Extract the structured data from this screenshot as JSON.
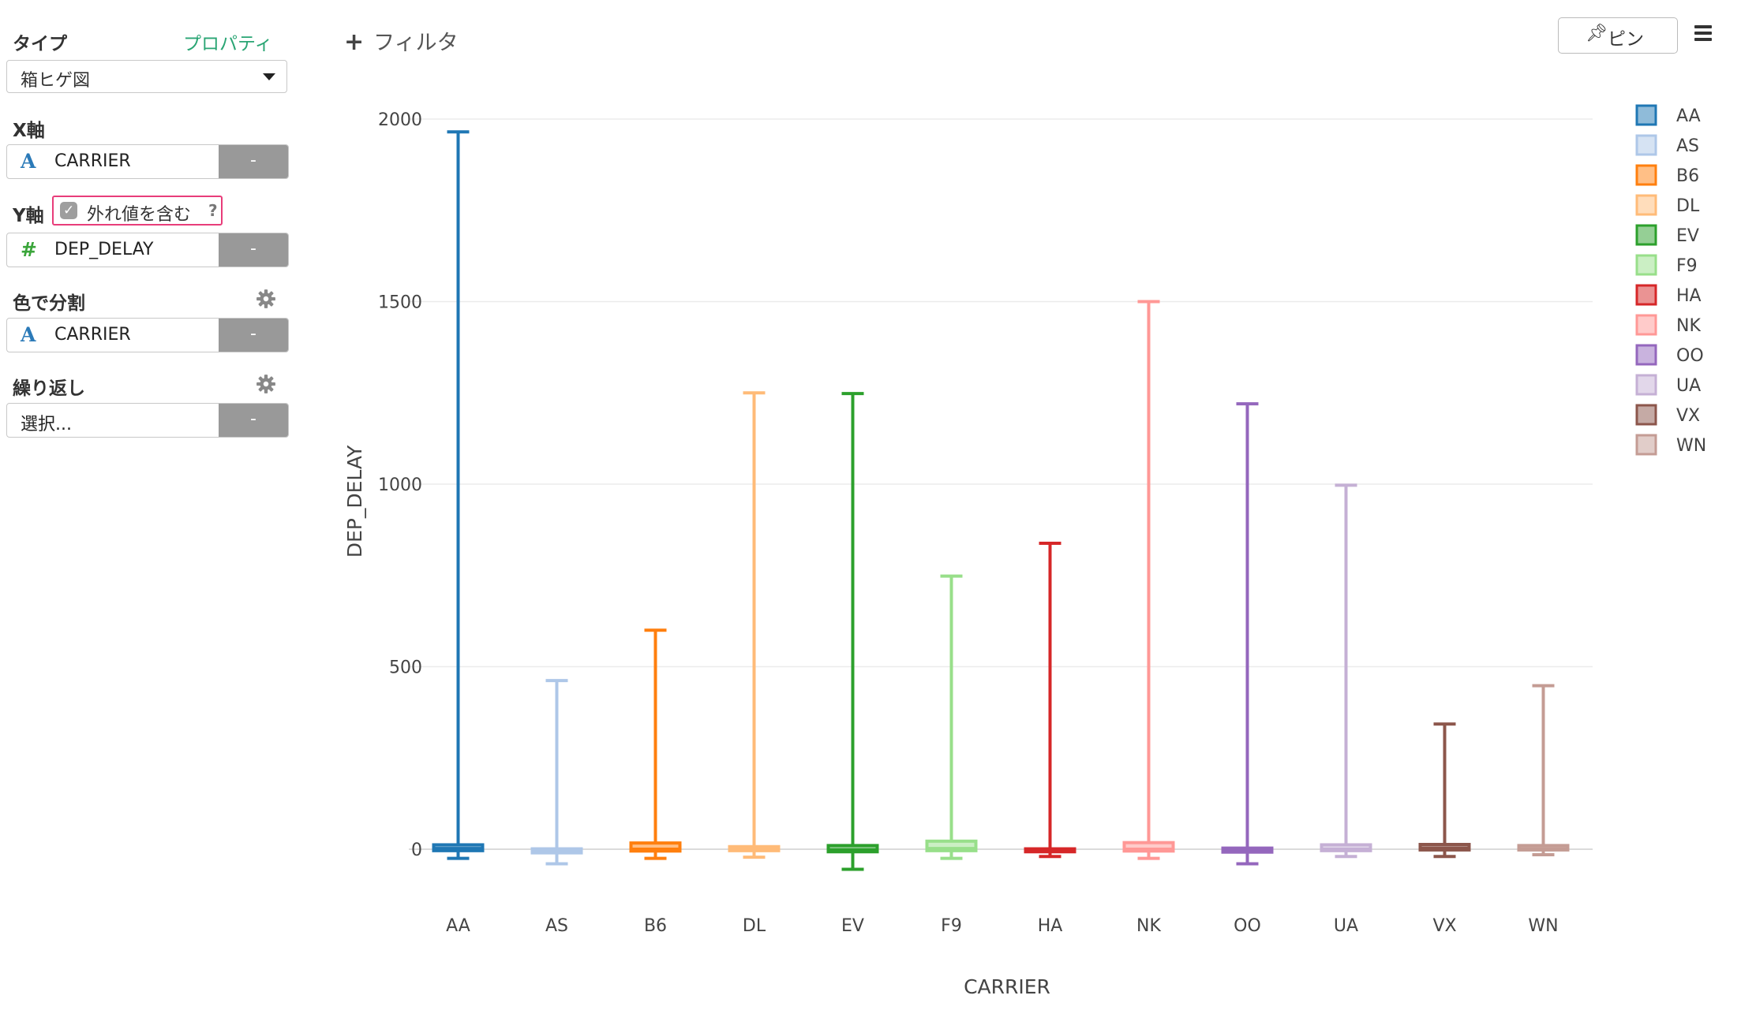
{
  "sidebar": {
    "type_label": "タイプ",
    "properties_link": "プロパティ",
    "chart_type_value": "箱ヒゲ図",
    "x_axis_label": "X軸",
    "x_axis_field": "CARRIER",
    "y_axis_label": "Y軸",
    "include_outliers_label": "外れ値を含む",
    "include_outliers_checked": true,
    "help_mark": "?",
    "y_axis_field": "DEP_DELAY",
    "color_split_label": "色で分割",
    "color_split_field": "CARRIER",
    "repeat_label": "繰り返し",
    "repeat_placeholder": "選択...",
    "remove_label": "-"
  },
  "toolbar": {
    "filter_plus": "+",
    "filter_label": "フィルタ",
    "pin_label": "ピン"
  },
  "chart_data": {
    "type": "box",
    "xlabel": "CARRIER",
    "ylabel": "DEP_DELAY",
    "ylim": [
      -90,
      2030
    ],
    "yticks": [
      0,
      500,
      1000,
      1500,
      2000
    ],
    "grid": true,
    "legend_position": "right",
    "categories": [
      "AA",
      "AS",
      "B6",
      "DL",
      "EV",
      "F9",
      "HA",
      "NK",
      "OO",
      "UA",
      "VX",
      "WN"
    ],
    "series": [
      {
        "name": "AA",
        "color": "#1f77b4",
        "min": -25,
        "q1": -4,
        "median": 2,
        "q3": 12,
        "max": 1965
      },
      {
        "name": "AS",
        "color": "#aec7e8",
        "min": -40,
        "q1": -10,
        "median": -4,
        "q3": 1,
        "max": 462
      },
      {
        "name": "B6",
        "color": "#ff7f0e",
        "min": -25,
        "q1": -5,
        "median": 0,
        "q3": 17,
        "max": 600
      },
      {
        "name": "DL",
        "color": "#ffbb78",
        "min": -22,
        "q1": -4,
        "median": -1,
        "q3": 7,
        "max": 1250
      },
      {
        "name": "EV",
        "color": "#2ca02c",
        "min": -55,
        "q1": -7,
        "median": -2,
        "q3": 10,
        "max": 1248
      },
      {
        "name": "F9",
        "color": "#98df8a",
        "min": -25,
        "q1": -4,
        "median": 2,
        "q3": 22,
        "max": 748
      },
      {
        "name": "HA",
        "color": "#d62728",
        "min": -20,
        "q1": -7,
        "median": -3,
        "q3": 1,
        "max": 838
      },
      {
        "name": "NK",
        "color": "#ff9896",
        "min": -25,
        "q1": -5,
        "median": 0,
        "q3": 18,
        "max": 1500
      },
      {
        "name": "OO",
        "color": "#9467bd",
        "min": -40,
        "q1": -8,
        "median": -3,
        "q3": 3,
        "max": 1220
      },
      {
        "name": "UA",
        "color": "#c5b0d5",
        "min": -20,
        "q1": -4,
        "median": 0,
        "q3": 12,
        "max": 997
      },
      {
        "name": "VX",
        "color": "#8c564b",
        "min": -20,
        "q1": -2,
        "median": 3,
        "q3": 13,
        "max": 343
      },
      {
        "name": "WN",
        "color": "#c49c94",
        "min": -15,
        "q1": -2,
        "median": 1,
        "q3": 10,
        "max": 448
      }
    ]
  }
}
